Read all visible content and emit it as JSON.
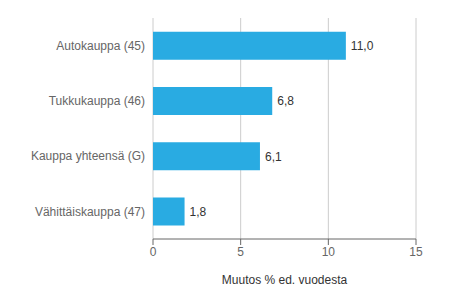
{
  "chart_data": {
    "type": "bar",
    "orientation": "horizontal",
    "categories": [
      "Autokauppa (45)",
      "Tukkukauppa (46)",
      "Kauppa yhteensä (G)",
      "Vähittäiskauppa (47)"
    ],
    "values": [
      11.0,
      6.8,
      6.1,
      1.8
    ],
    "value_labels": [
      "11,0",
      "6,8",
      "6,1",
      "1,8"
    ],
    "data_labels": true,
    "color": "#29ABE2",
    "xlabel": "Muutos % ed. vuodesta",
    "xlim": [
      0,
      15
    ],
    "xticks": [
      0,
      5,
      10,
      15
    ],
    "grid": true
  }
}
